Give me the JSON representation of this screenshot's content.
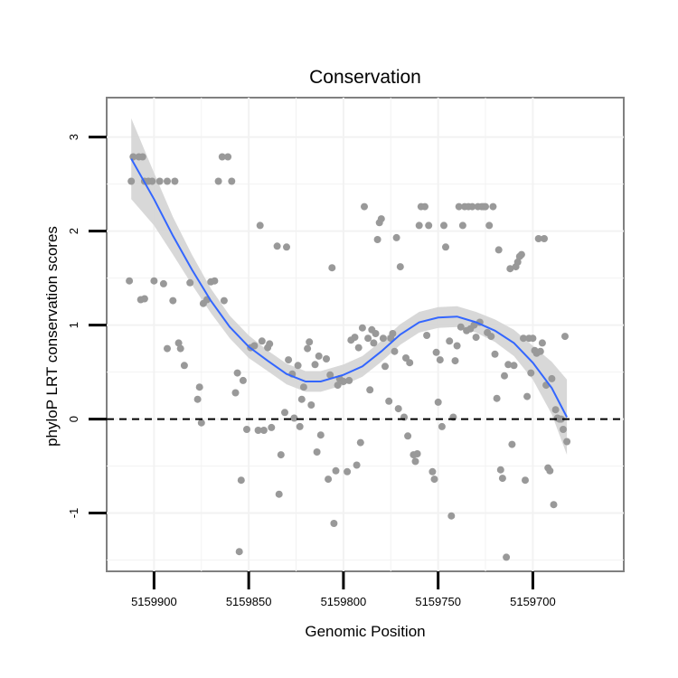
{
  "chart_data": {
    "type": "scatter",
    "title": "Conservation",
    "xlabel": "Genomic Position",
    "ylabel": "phyloP LRT conservation scores",
    "x_reversed": true,
    "xlim": [
      5159925,
      5159652
    ],
    "ylim": [
      -1.62,
      3.42
    ],
    "x_ticks": [
      5159900,
      5159850,
      5159800,
      5159750,
      5159700
    ],
    "x_tick_labels": [
      "5159900",
      "5159850",
      "5159800",
      "5159750",
      "5159700"
    ],
    "y_ticks": [
      -1,
      0,
      1,
      2,
      3
    ],
    "y_tick_labels": [
      "-1",
      "0",
      "1",
      "2",
      "3"
    ],
    "reference_line": {
      "y": 0,
      "style": "dashed",
      "color": "#000000"
    },
    "colors": {
      "points": "#999999",
      "fit": "#3366ff",
      "band": "#d4d4d4",
      "frame": "#808080",
      "grid": "#f2f2f2"
    },
    "points": [
      [
        5159912,
        2.53
      ],
      [
        5159913,
        1.47
      ],
      [
        5159911,
        2.79
      ],
      [
        5159908,
        2.79
      ],
      [
        5159906,
        2.79
      ],
      [
        5159905,
        2.53
      ],
      [
        5159903,
        2.53
      ],
      [
        5159901,
        2.53
      ],
      [
        5159897,
        2.53
      ],
      [
        5159893,
        2.53
      ],
      [
        5159889,
        2.53
      ],
      [
        5159907,
        1.27
      ],
      [
        5159905,
        1.28
      ],
      [
        5159900,
        1.47
      ],
      [
        5159895,
        1.44
      ],
      [
        5159893,
        0.75
      ],
      [
        5159890,
        1.26
      ],
      [
        5159887,
        0.81
      ],
      [
        5159886,
        0.75
      ],
      [
        5159884,
        0.57
      ],
      [
        5159881,
        1.45
      ],
      [
        5159877,
        0.21
      ],
      [
        5159876,
        0.34
      ],
      [
        5159875,
        -0.04
      ],
      [
        5159874,
        1.23
      ],
      [
        5159872,
        1.27
      ],
      [
        5159870,
        1.46
      ],
      [
        5159868,
        1.47
      ],
      [
        5159866,
        2.53
      ],
      [
        5159864,
        2.79
      ],
      [
        5159863,
        1.26
      ],
      [
        5159861,
        2.79
      ],
      [
        5159859,
        2.53
      ],
      [
        5159857,
        0.28
      ],
      [
        5159856,
        0.49
      ],
      [
        5159855,
        -1.41
      ],
      [
        5159854,
        -0.65
      ],
      [
        5159853,
        0.41
      ],
      [
        5159851,
        -0.11
      ],
      [
        5159849,
        0.76
      ],
      [
        5159847,
        0.78
      ],
      [
        5159845,
        -0.12
      ],
      [
        5159844,
        2.06
      ],
      [
        5159843,
        0.83
      ],
      [
        5159842,
        -0.12
      ],
      [
        5159840,
        0.76
      ],
      [
        5159839,
        0.8
      ],
      [
        5159838,
        -0.09
      ],
      [
        5159835,
        1.84
      ],
      [
        5159834,
        -0.8
      ],
      [
        5159833,
        -0.38
      ],
      [
        5159831,
        0.07
      ],
      [
        5159830,
        1.83
      ],
      [
        5159829,
        0.63
      ],
      [
        5159827,
        0.48
      ],
      [
        5159826,
        0.01
      ],
      [
        5159824,
        0.57
      ],
      [
        5159823,
        -0.08
      ],
      [
        5159822,
        0.21
      ],
      [
        5159821,
        0.34
      ],
      [
        5159819,
        0.75
      ],
      [
        5159818,
        0.82
      ],
      [
        5159817,
        0.15
      ],
      [
        5159815,
        0.58
      ],
      [
        5159814,
        -0.35
      ],
      [
        5159813,
        0.67
      ],
      [
        5159812,
        -0.17
      ],
      [
        5159809,
        0.64
      ],
      [
        5159808,
        -0.64
      ],
      [
        5159807,
        0.47
      ],
      [
        5159806,
        1.61
      ],
      [
        5159805,
        -1.11
      ],
      [
        5159804,
        -0.55
      ],
      [
        5159803,
        0.36
      ],
      [
        5159802,
        0.43
      ],
      [
        5159800,
        0.4
      ],
      [
        5159798,
        -0.56
      ],
      [
        5159797,
        0.41
      ],
      [
        5159796,
        0.84
      ],
      [
        5159794,
        0.87
      ],
      [
        5159793,
        -0.49
      ],
      [
        5159792,
        0.76
      ],
      [
        5159791,
        -0.25
      ],
      [
        5159790,
        0.97
      ],
      [
        5159789,
        2.26
      ],
      [
        5159787,
        0.86
      ],
      [
        5159786,
        0.31
      ],
      [
        5159785,
        0.95
      ],
      [
        5159784,
        0.81
      ],
      [
        5159783,
        0.91
      ],
      [
        5159782,
        1.91
      ],
      [
        5159781,
        2.09
      ],
      [
        5159780,
        2.13
      ],
      [
        5159779,
        0.86
      ],
      [
        5159778,
        0.56
      ],
      [
        5159776,
        0.19
      ],
      [
        5159775,
        0.86
      ],
      [
        5159774,
        0.91
      ],
      [
        5159773,
        0.72
      ],
      [
        5159772,
        1.93
      ],
      [
        5159771,
        0.11
      ],
      [
        5159770,
        1.62
      ],
      [
        5159768,
        0.02
      ],
      [
        5159767,
        0.65
      ],
      [
        5159766,
        -0.18
      ],
      [
        5159765,
        0.6
      ],
      [
        5159763,
        -0.38
      ],
      [
        5159762,
        -0.45
      ],
      [
        5159761,
        -0.37
      ],
      [
        5159760,
        2.06
      ],
      [
        5159759,
        2.26
      ],
      [
        5159757,
        2.26
      ],
      [
        5159756,
        0.89
      ],
      [
        5159755,
        2.06
      ],
      [
        5159753,
        -0.56
      ],
      [
        5159752,
        -0.64
      ],
      [
        5159751,
        0.71
      ],
      [
        5159750,
        0.18
      ],
      [
        5159749,
        0.63
      ],
      [
        5159748,
        -0.08
      ],
      [
        5159747,
        2.06
      ],
      [
        5159746,
        1.83
      ],
      [
        5159744,
        0.83
      ],
      [
        5159743,
        -1.03
      ],
      [
        5159742,
        0.02
      ],
      [
        5159741,
        0.62
      ],
      [
        5159740,
        0.78
      ],
      [
        5159739,
        2.26
      ],
      [
        5159738,
        0.98
      ],
      [
        5159737,
        2.06
      ],
      [
        5159736,
        2.26
      ],
      [
        5159735,
        0.94
      ],
      [
        5159734,
        2.26
      ],
      [
        5159733,
        0.96
      ],
      [
        5159732,
        2.26
      ],
      [
        5159731,
        1.0
      ],
      [
        5159730,
        0.87
      ],
      [
        5159729,
        2.26
      ],
      [
        5159728,
        1.03
      ],
      [
        5159727,
        2.26
      ],
      [
        5159726,
        2.26
      ],
      [
        5159725,
        2.26
      ],
      [
        5159724,
        0.92
      ],
      [
        5159723,
        2.06
      ],
      [
        5159722,
        0.88
      ],
      [
        5159721,
        2.26
      ],
      [
        5159720,
        0.69
      ],
      [
        5159719,
        0.22
      ],
      [
        5159718,
        1.8
      ],
      [
        5159717,
        -0.54
      ],
      [
        5159716,
        -0.63
      ],
      [
        5159715,
        0.46
      ],
      [
        5159714,
        -1.47
      ],
      [
        5159713,
        0.58
      ],
      [
        5159712,
        1.6
      ],
      [
        5159711,
        -0.27
      ],
      [
        5159710,
        0.57
      ],
      [
        5159709,
        1.62
      ],
      [
        5159708,
        1.67
      ],
      [
        5159707,
        1.73
      ],
      [
        5159706,
        1.75
      ],
      [
        5159705,
        0.86
      ],
      [
        5159704,
        -0.65
      ],
      [
        5159703,
        0.24
      ],
      [
        5159702,
        0.86
      ],
      [
        5159701,
        0.49
      ],
      [
        5159700,
        0.86
      ],
      [
        5159699,
        0.73
      ],
      [
        5159698,
        0.7
      ],
      [
        5159697,
        1.92
      ],
      [
        5159696,
        0.72
      ],
      [
        5159695,
        0.81
      ],
      [
        5159694,
        1.92
      ],
      [
        5159693,
        0.36
      ],
      [
        5159692,
        -0.52
      ],
      [
        5159691,
        -0.55
      ],
      [
        5159690,
        0.43
      ],
      [
        5159689,
        -0.91
      ],
      [
        5159688,
        0.1
      ],
      [
        5159687,
        0.01
      ],
      [
        5159686,
        0.0
      ],
      [
        5159685,
        0.0
      ],
      [
        5159684,
        -0.11
      ],
      [
        5159683,
        0.88
      ],
      [
        5159682,
        -0.24
      ]
    ],
    "fit_x": [
      5159912,
      5159900,
      5159890,
      5159880,
      5159870,
      5159860,
      5159850,
      5159840,
      5159830,
      5159820,
      5159812,
      5159800,
      5159790,
      5159780,
      5159770,
      5159760,
      5159750,
      5159740,
      5159730,
      5159720,
      5159710,
      5159700,
      5159690,
      5159682
    ],
    "fit_y": [
      2.77,
      2.34,
      1.95,
      1.59,
      1.26,
      0.98,
      0.77,
      0.62,
      0.48,
      0.4,
      0.4,
      0.47,
      0.56,
      0.72,
      0.9,
      1.03,
      1.08,
      1.09,
      1.03,
      0.94,
      0.81,
      0.6,
      0.33,
      0.02
    ],
    "band_halfwidth": [
      0.43,
      0.28,
      0.2,
      0.16,
      0.13,
      0.12,
      0.12,
      0.11,
      0.11,
      0.11,
      0.11,
      0.11,
      0.11,
      0.11,
      0.11,
      0.11,
      0.11,
      0.11,
      0.11,
      0.12,
      0.14,
      0.18,
      0.28,
      0.4
    ]
  }
}
